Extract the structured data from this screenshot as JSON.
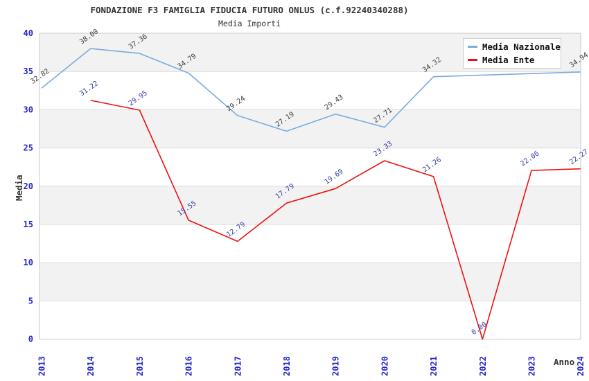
{
  "header": {
    "title": "FONDAZIONE F3 FAMIGLIA FIDUCIA FUTURO ONLUS (c.f.92240340288)",
    "subtitle": "Media Importi"
  },
  "colors": {
    "background": "#ffffff",
    "band_fill": "#f2f2f2",
    "grid_line": "#dcdcdc",
    "plot_border": "#c8c8c8",
    "tick_label": "#2525cc",
    "axis_title": "#333333",
    "series_nazionale": "#7aabdf",
    "series_ente": "#ee1111",
    "point_label_nazionale": "#404040",
    "point_label_ente": "#333f9e"
  },
  "legend": {
    "position": "top-right-inside",
    "items": [
      {
        "label": "Media Nazionale",
        "color": "#7aabdf"
      },
      {
        "label": "Media Ente",
        "color": "#ee1111"
      }
    ]
  },
  "chart_data": {
    "type": "line",
    "title": "FONDAZIONE F3 FAMIGLIA FIDUCIA FUTURO ONLUS (c.f.92240340288)",
    "subtitle": "Media Importi",
    "xlabel": "Anno",
    "ylabel": "Media",
    "x": [
      2013,
      2014,
      2015,
      2016,
      2017,
      2018,
      2019,
      2020,
      2021,
      2022,
      2023,
      2024
    ],
    "yticks": [
      0,
      5,
      10,
      15,
      20,
      25,
      30,
      35,
      40
    ],
    "ylim": [
      0,
      40
    ],
    "grid": "horizontal-bands",
    "band_ranges": [
      [
        5,
        10
      ],
      [
        15,
        20
      ],
      [
        25,
        30
      ],
      [
        35,
        40
      ]
    ],
    "legend_position": "top-right-inside",
    "series": [
      {
        "name": "Media Nazionale",
        "color": "#7aabdf",
        "label_color": "#404040",
        "values": [
          32.82,
          38.0,
          37.36,
          34.79,
          29.24,
          27.19,
          29.43,
          27.71,
          34.32,
          34.53,
          34.73,
          34.94
        ],
        "point_labels": [
          "32.82",
          "38.00",
          "37.36",
          "34.79",
          "29.24",
          "27.19",
          "29.43",
          "27.71",
          "34.32",
          null,
          null,
          "34.94"
        ]
      },
      {
        "name": "Media Ente",
        "color": "#ee1111",
        "label_color": "#333f9e",
        "values": [
          null,
          31.22,
          29.95,
          15.55,
          12.79,
          17.79,
          19.69,
          23.33,
          21.26,
          0.0,
          22.06,
          22.27
        ],
        "point_labels": [
          null,
          "31.22",
          "29.95",
          "15.55",
          "12.79",
          "17.79",
          "19.69",
          "23.33",
          "21.26",
          "0.00",
          "22.06",
          "22.27"
        ]
      }
    ]
  }
}
